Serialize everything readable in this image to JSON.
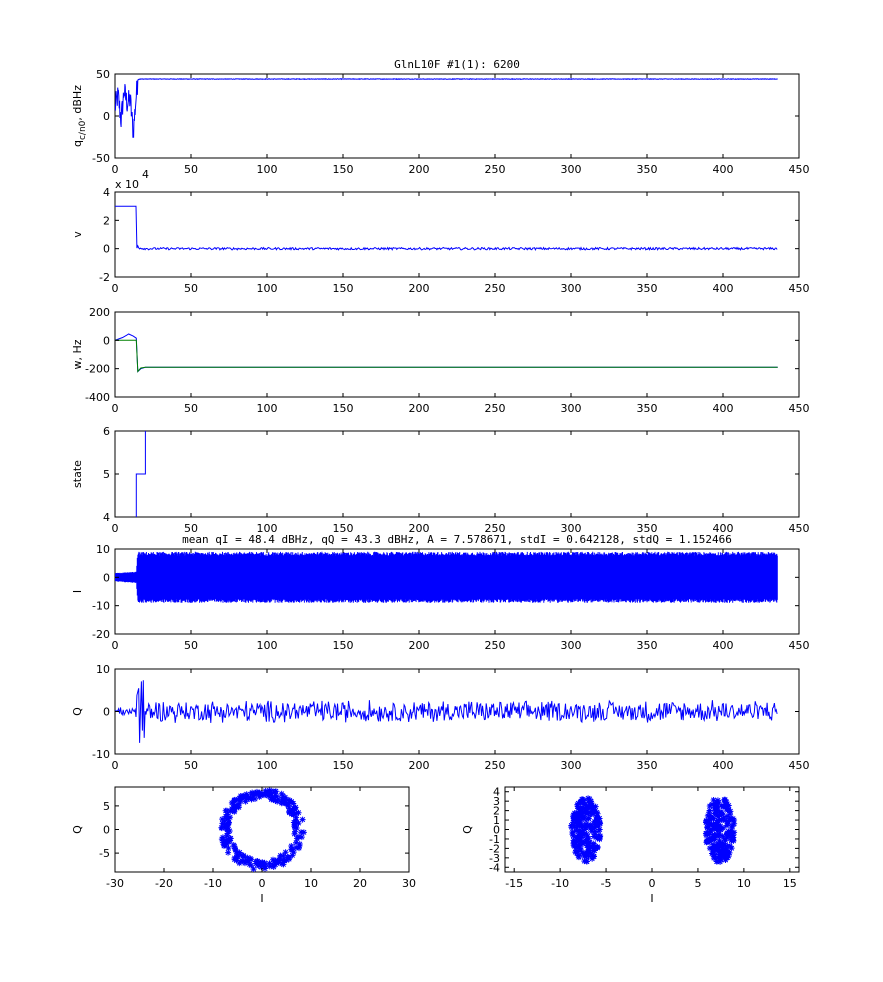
{
  "chart_data": [
    {
      "id": "cn0",
      "type": "line",
      "title": "GlnL10F #1(1): 6200",
      "ylabel_main": "q",
      "ylabel_sub": "c/n0",
      "ylabel_tail": ", dBHz",
      "xlim": [
        0,
        450
      ],
      "ylim": [
        -50,
        50
      ],
      "xticks": [
        0,
        50,
        100,
        150,
        200,
        250,
        300,
        350,
        400,
        450
      ],
      "yticks": [
        -50,
        0,
        50
      ],
      "x_scale_note_base": "x 10",
      "x_scale_note_exp": "4",
      "series": [
        {
          "color": "#0000ff",
          "x": [
            0,
            2,
            4,
            6,
            8,
            10,
            12,
            14,
            15,
            16,
            20,
            100,
            200,
            300,
            400,
            436
          ],
          "y": [
            10,
            25,
            -5,
            30,
            15,
            20,
            -20,
            25,
            43,
            44,
            44,
            44,
            44,
            44,
            44,
            44
          ]
        }
      ]
    },
    {
      "id": "v",
      "type": "line",
      "ylabel": "v",
      "xlim": [
        0,
        450
      ],
      "ylim": [
        -2,
        4
      ],
      "xticks": [
        0,
        50,
        100,
        150,
        200,
        250,
        300,
        350,
        400,
        450
      ],
      "yticks": [
        -2,
        0,
        2,
        4
      ],
      "series": [
        {
          "color": "#0000ff",
          "x": [
            0,
            14,
            14.5,
            15,
            16,
            20,
            100,
            200,
            300,
            400,
            436
          ],
          "y": [
            3,
            3,
            -0.7,
            0.2,
            0.05,
            0,
            0,
            0,
            0,
            0,
            0
          ]
        }
      ]
    },
    {
      "id": "w",
      "type": "line",
      "ylabel": "w, Hz",
      "xlim": [
        0,
        450
      ],
      "ylim": [
        -400,
        200
      ],
      "xticks": [
        0,
        50,
        100,
        150,
        200,
        250,
        300,
        350,
        400,
        450
      ],
      "yticks": [
        -400,
        -200,
        0,
        200
      ],
      "series": [
        {
          "color": "#0000ff",
          "x": [
            0,
            5,
            9,
            12,
            14,
            15,
            17,
            20,
            100,
            200,
            300,
            400,
            436
          ],
          "y": [
            0,
            20,
            45,
            30,
            15,
            -220,
            -200,
            -190,
            -190,
            -190,
            -190,
            -190,
            -190
          ]
        },
        {
          "color": "#008000",
          "x": [
            0,
            12,
            14,
            15,
            17,
            20,
            100,
            200,
            300,
            400,
            436
          ],
          "y": [
            0,
            0,
            0,
            -220,
            -195,
            -190,
            -190,
            -190,
            -190,
            -190,
            -190
          ]
        }
      ]
    },
    {
      "id": "state",
      "type": "line",
      "ylabel": "state",
      "xlim": [
        0,
        450
      ],
      "ylim": [
        4,
        6
      ],
      "xticks": [
        0,
        50,
        100,
        150,
        200,
        250,
        300,
        350,
        400,
        450
      ],
      "yticks": [
        4,
        5,
        6
      ],
      "series": [
        {
          "color": "#0000ff",
          "x": [
            14,
            14,
            20,
            20
          ],
          "y": [
            4,
            5,
            5,
            6
          ]
        }
      ]
    },
    {
      "id": "I",
      "type": "area",
      "title": "mean qI = 48.4 dBHz, qQ = 43.3 dBHz, A = 7.578671, stdI = 0.642128, stdQ = 1.152466",
      "ylabel": "I",
      "xlim": [
        0,
        450
      ],
      "ylim": [
        -20,
        10
      ],
      "xticks": [
        0,
        50,
        100,
        150,
        200,
        250,
        300,
        350,
        400,
        450
      ],
      "yticks": [
        -20,
        -10,
        0,
        10
      ],
      "series": [
        {
          "color": "#0000ff",
          "x": [
            0,
            14,
            15,
            436
          ],
          "upper": [
            1.5,
            2,
            9,
            9
          ],
          "lower": [
            -1.5,
            -2,
            -9,
            -9
          ]
        }
      ]
    },
    {
      "id": "Q",
      "type": "line",
      "ylabel": "Q",
      "xlim": [
        0,
        450
      ],
      "ylim": [
        -10,
        10
      ],
      "xticks": [
        0,
        50,
        100,
        150,
        200,
        250,
        300,
        350,
        400,
        450
      ],
      "yticks": [
        -10,
        0,
        10
      ],
      "series": [
        {
          "color": "#0000ff",
          "x": [
            0,
            436
          ],
          "y": [
            0,
            0
          ]
        }
      ]
    },
    {
      "id": "iq_all",
      "type": "scatter",
      "xlabel": "I",
      "ylabel": "Q",
      "xlim": [
        -30,
        30
      ],
      "ylim": [
        -9,
        9
      ],
      "xticks": [
        -30,
        -20,
        -10,
        0,
        10,
        20,
        30
      ],
      "yticks": [
        -5,
        0,
        5
      ],
      "series": [
        {
          "color": "#0000ff",
          "shape": "ring",
          "center": [
            0,
            0
          ],
          "radius": 7.6
        }
      ]
    },
    {
      "id": "iq_locked",
      "type": "scatter",
      "xlabel": "I",
      "ylabel": "Q",
      "xlim": [
        -16,
        16
      ],
      "ylim": [
        -4.5,
        4.5
      ],
      "xticks": [
        -15,
        -10,
        -5,
        0,
        5,
        10,
        15
      ],
      "yticks": [
        -4,
        -3,
        -2,
        -1,
        0,
        1,
        2,
        3,
        4
      ],
      "series": [
        {
          "color": "#0000ff",
          "shape": "clusters",
          "centers": [
            [
              -7.2,
              0
            ],
            [
              7.4,
              0
            ]
          ],
          "spread_i": 1.6,
          "spread_q": 3.5
        }
      ]
    }
  ]
}
